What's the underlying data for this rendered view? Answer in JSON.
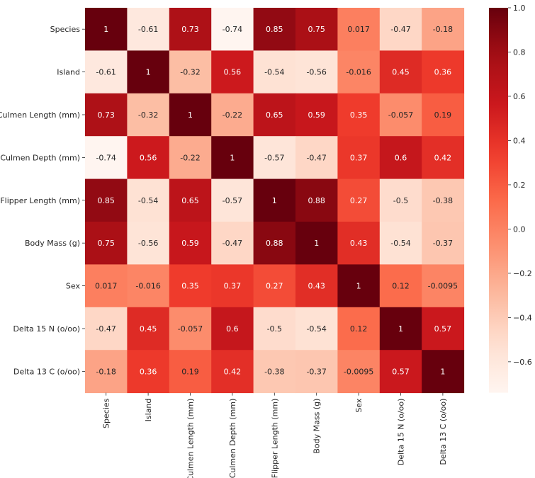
{
  "chart_data": {
    "type": "heatmap",
    "title": "",
    "xlabel": "",
    "ylabel": "",
    "labels": [
      "Species",
      "Island",
      "Culmen Length (mm)",
      "Culmen Depth (mm)",
      "Flipper Length (mm)",
      "Body Mass (g)",
      "Sex",
      "Delta 15 N (o/oo)",
      "Delta 13 C (o/oo)"
    ],
    "values": [
      [
        1,
        -0.61,
        0.73,
        -0.74,
        0.85,
        0.75,
        0.017,
        -0.47,
        -0.18
      ],
      [
        -0.61,
        1,
        -0.32,
        0.56,
        -0.54,
        -0.56,
        -0.016,
        0.45,
        0.36
      ],
      [
        0.73,
        -0.32,
        1,
        -0.22,
        0.65,
        0.59,
        0.35,
        -0.057,
        0.19
      ],
      [
        -0.74,
        0.56,
        -0.22,
        1,
        -0.57,
        -0.47,
        0.37,
        0.6,
        0.42
      ],
      [
        0.85,
        -0.54,
        0.65,
        -0.57,
        1,
        0.88,
        0.27,
        -0.5,
        -0.38
      ],
      [
        0.75,
        -0.56,
        0.59,
        -0.47,
        0.88,
        1,
        0.43,
        -0.54,
        -0.37
      ],
      [
        0.017,
        -0.016,
        0.35,
        0.37,
        0.27,
        0.43,
        1,
        0.12,
        -0.0095
      ],
      [
        -0.47,
        0.45,
        -0.057,
        0.6,
        -0.5,
        -0.54,
        0.12,
        1,
        0.57
      ],
      [
        -0.18,
        0.36,
        0.19,
        0.42,
        -0.38,
        -0.37,
        -0.0095,
        0.57,
        1
      ]
    ],
    "colormap": "Reds",
    "colorbar": {
      "range": [
        -0.74,
        1.0
      ],
      "ticks": [
        -0.6,
        -0.4,
        -0.2,
        0.0,
        0.2,
        0.4,
        0.6,
        0.8,
        1.0
      ],
      "tick_labels": [
        "−0.6",
        "−0.4",
        "−0.2",
        "0.0",
        "0.2",
        "0.4",
        "0.6",
        "0.8",
        "1.0"
      ]
    },
    "annotated": true
  }
}
